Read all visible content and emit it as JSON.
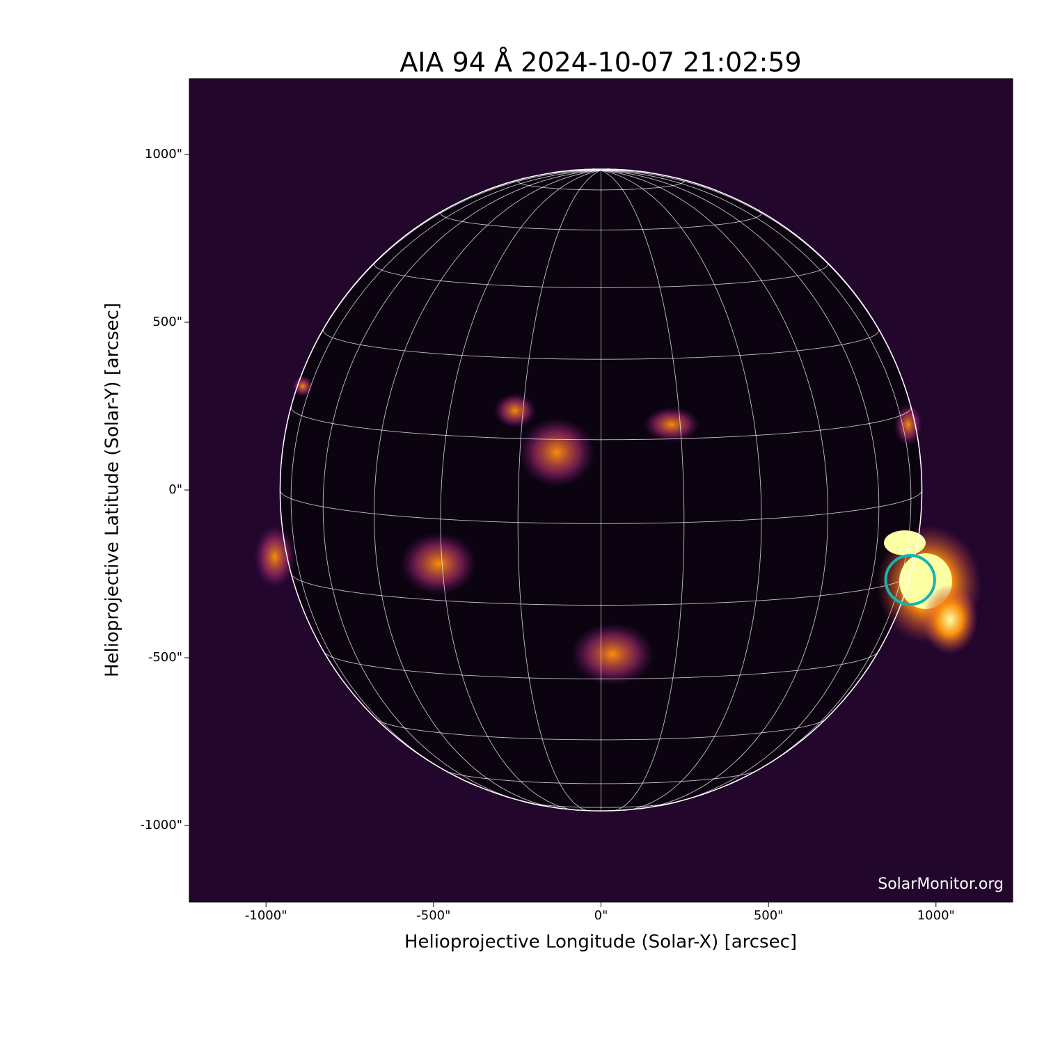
{
  "chart_data": {
    "type": "image",
    "title": "AIA 94 Å 2024-10-07 21:02:59",
    "xlabel": "Helioprojective Longitude (Solar-X) [arcsec]",
    "ylabel": "Helioprojective Latitude (Solar-Y) [arcsec]",
    "watermark": "SolarMonitor.org",
    "xlim": [
      -1229,
      1229
    ],
    "ylim": [
      -1228,
      1226
    ],
    "xticks": [
      {
        "value": -1000,
        "label": "-1000\""
      },
      {
        "value": -500,
        "label": "-500\""
      },
      {
        "value": 0,
        "label": "0\""
      },
      {
        "value": 500,
        "label": "500\""
      },
      {
        "value": 1000,
        "label": "1000\""
      }
    ],
    "yticks": [
      {
        "value": -1000,
        "label": "-1000\""
      },
      {
        "value": -500,
        "label": "-500\""
      },
      {
        "value": 0,
        "label": "0\""
      },
      {
        "value": 500,
        "label": "500\""
      },
      {
        "value": 1000,
        "label": "1000\""
      }
    ],
    "solar_radius": 958,
    "graticule": {
      "step_deg": 15,
      "b0_deg": 6
    },
    "markers": [
      {
        "x": 923,
        "y": -268,
        "r": 73,
        "color": "#14b4b4"
      }
    ]
  }
}
